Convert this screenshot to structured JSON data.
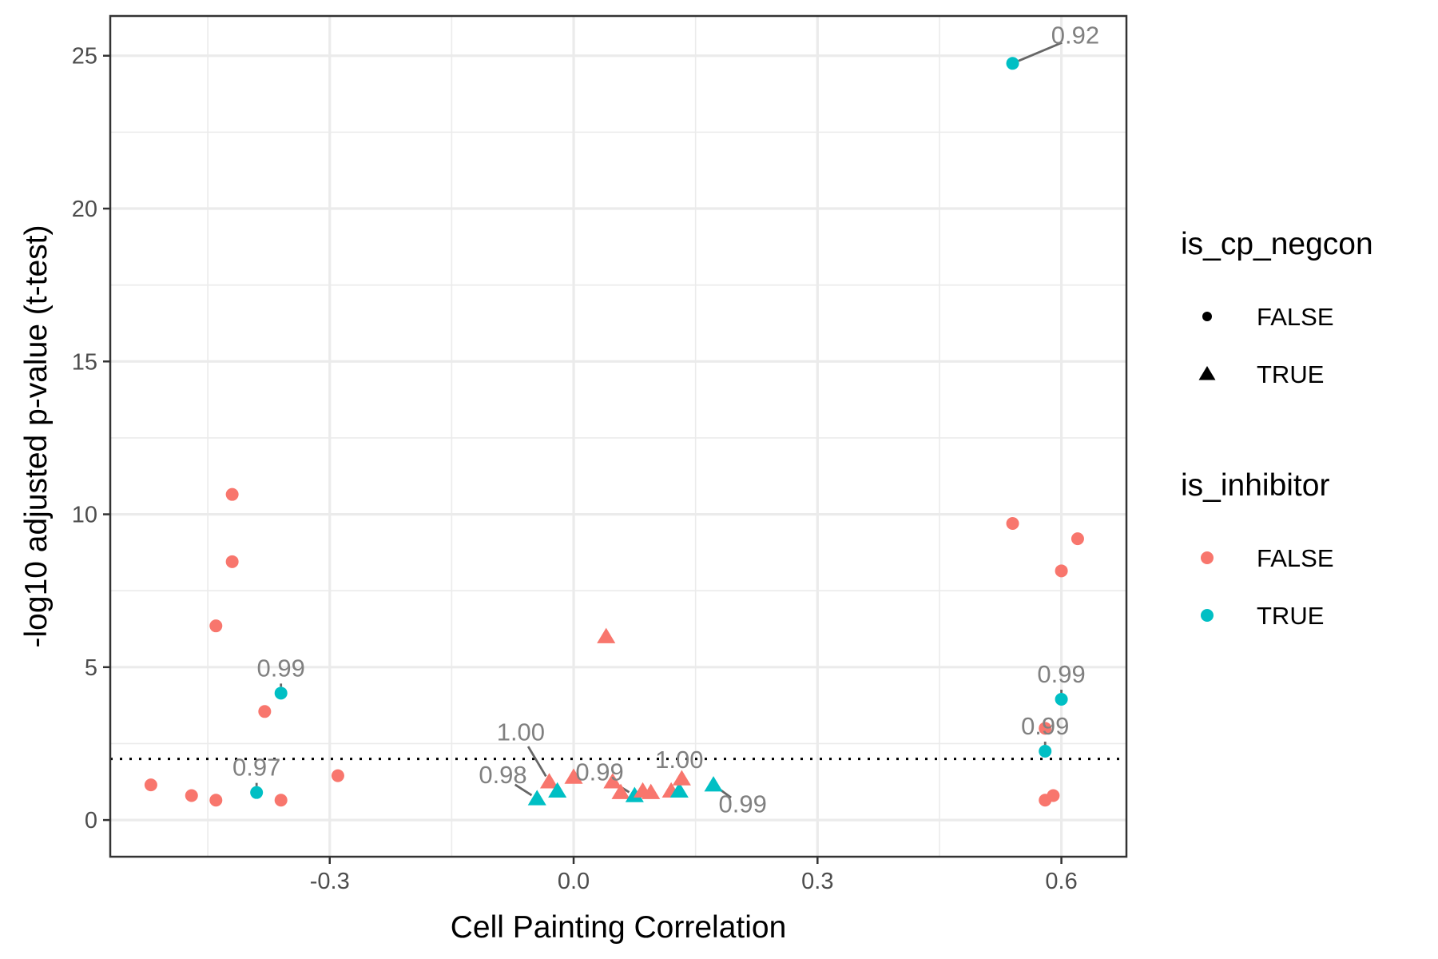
{
  "chart_data": {
    "type": "scatter",
    "xlabel": "Cell Painting Correlation",
    "ylabel": "-log10 adjusted p-value (t-test)",
    "xlim": [
      -0.57,
      0.68
    ],
    "ylim": [
      -1.2,
      26.3
    ],
    "xticks": [
      -0.3,
      0.0,
      0.3,
      0.6
    ],
    "xtick_labels": [
      "-0.3",
      "0.0",
      "0.3",
      "0.6"
    ],
    "yticks": [
      0,
      5,
      10,
      15,
      20,
      25
    ],
    "ytick_labels": [
      "0",
      "5",
      "10",
      "15",
      "20",
      "25"
    ],
    "grid": true,
    "threshold_line": 2.0,
    "legend_position": "right",
    "colors": {
      "FALSE": "#F8766D",
      "TRUE": "#00BFC4"
    },
    "legends": [
      {
        "title": "is_cp_negcon",
        "items": [
          {
            "label": "FALSE",
            "shape": "circle",
            "color": "#000000"
          },
          {
            "label": "TRUE",
            "shape": "triangle",
            "color": "#000000"
          }
        ]
      },
      {
        "title": "is_inhibitor",
        "items": [
          {
            "label": "FALSE",
            "shape": "circle",
            "color": "#F8766D"
          },
          {
            "label": "TRUE",
            "shape": "circle",
            "color": "#00BFC4"
          }
        ]
      }
    ],
    "points": [
      {
        "x": -0.52,
        "y": 1.15,
        "is_cp_negcon": false,
        "is_inhibitor": false
      },
      {
        "x": -0.47,
        "y": 0.8,
        "is_cp_negcon": false,
        "is_inhibitor": false
      },
      {
        "x": -0.44,
        "y": 0.65,
        "is_cp_negcon": false,
        "is_inhibitor": false
      },
      {
        "x": -0.44,
        "y": 6.35,
        "is_cp_negcon": false,
        "is_inhibitor": false
      },
      {
        "x": -0.42,
        "y": 10.65,
        "is_cp_negcon": false,
        "is_inhibitor": false
      },
      {
        "x": -0.42,
        "y": 8.45,
        "is_cp_negcon": false,
        "is_inhibitor": false
      },
      {
        "x": -0.39,
        "y": 0.9,
        "is_cp_negcon": false,
        "is_inhibitor": true
      },
      {
        "x": -0.38,
        "y": 3.55,
        "is_cp_negcon": false,
        "is_inhibitor": false
      },
      {
        "x": -0.36,
        "y": 4.15,
        "is_cp_negcon": false,
        "is_inhibitor": true
      },
      {
        "x": -0.36,
        "y": 0.65,
        "is_cp_negcon": false,
        "is_inhibitor": false
      },
      {
        "x": -0.29,
        "y": 1.45,
        "is_cp_negcon": false,
        "is_inhibitor": false
      },
      {
        "x": -0.045,
        "y": 0.7,
        "is_cp_negcon": true,
        "is_inhibitor": true
      },
      {
        "x": -0.03,
        "y": 1.25,
        "is_cp_negcon": true,
        "is_inhibitor": false
      },
      {
        "x": -0.02,
        "y": 0.95,
        "is_cp_negcon": true,
        "is_inhibitor": true
      },
      {
        "x": 0.0,
        "y": 1.4,
        "is_cp_negcon": true,
        "is_inhibitor": false
      },
      {
        "x": 0.04,
        "y": 6.0,
        "is_cp_negcon": true,
        "is_inhibitor": false
      },
      {
        "x": 0.048,
        "y": 1.25,
        "is_cp_negcon": true,
        "is_inhibitor": false
      },
      {
        "x": 0.058,
        "y": 0.9,
        "is_cp_negcon": true,
        "is_inhibitor": false
      },
      {
        "x": 0.075,
        "y": 0.8,
        "is_cp_negcon": true,
        "is_inhibitor": true
      },
      {
        "x": 0.085,
        "y": 0.95,
        "is_cp_negcon": true,
        "is_inhibitor": false
      },
      {
        "x": 0.095,
        "y": 0.9,
        "is_cp_negcon": true,
        "is_inhibitor": false
      },
      {
        "x": 0.12,
        "y": 0.95,
        "is_cp_negcon": true,
        "is_inhibitor": false
      },
      {
        "x": 0.13,
        "y": 0.95,
        "is_cp_negcon": true,
        "is_inhibitor": true
      },
      {
        "x": 0.133,
        "y": 1.35,
        "is_cp_negcon": true,
        "is_inhibitor": false
      },
      {
        "x": 0.172,
        "y": 1.15,
        "is_cp_negcon": true,
        "is_inhibitor": true
      },
      {
        "x": 0.54,
        "y": 24.75,
        "is_cp_negcon": false,
        "is_inhibitor": true
      },
      {
        "x": 0.54,
        "y": 9.7,
        "is_cp_negcon": false,
        "is_inhibitor": false
      },
      {
        "x": 0.58,
        "y": 3.0,
        "is_cp_negcon": false,
        "is_inhibitor": false
      },
      {
        "x": 0.58,
        "y": 2.25,
        "is_cp_negcon": false,
        "is_inhibitor": true
      },
      {
        "x": 0.58,
        "y": 0.65,
        "is_cp_negcon": false,
        "is_inhibitor": false
      },
      {
        "x": 0.59,
        "y": 0.8,
        "is_cp_negcon": false,
        "is_inhibitor": false
      },
      {
        "x": 0.6,
        "y": 8.15,
        "is_cp_negcon": false,
        "is_inhibitor": false
      },
      {
        "x": 0.6,
        "y": 3.95,
        "is_cp_negcon": false,
        "is_inhibitor": true
      },
      {
        "x": 0.62,
        "y": 9.2,
        "is_cp_negcon": false,
        "is_inhibitor": false
      }
    ],
    "annotations": [
      {
        "label": "0.92",
        "x": 0.54,
        "y": 24.75,
        "tx": 0.617,
        "ty": 25.4,
        "anchor": "middle"
      },
      {
        "label": "0.99",
        "x": -0.36,
        "y": 4.15,
        "tx": -0.36,
        "ty": 4.7,
        "anchor": "middle"
      },
      {
        "label": "0.97",
        "x": -0.39,
        "y": 0.9,
        "tx": -0.39,
        "ty": 1.45,
        "anchor": "middle"
      },
      {
        "label": "1.00",
        "x": -0.03,
        "y": 1.25,
        "tx": -0.065,
        "ty": 2.6,
        "anchor": "middle"
      },
      {
        "label": "0.98",
        "x": -0.045,
        "y": 0.7,
        "tx": -0.087,
        "ty": 1.2,
        "anchor": "middle"
      },
      {
        "label": "0.99",
        "x": 0.075,
        "y": 0.8,
        "tx": 0.032,
        "ty": 1.3,
        "anchor": "middle"
      },
      {
        "label": "1.00",
        "x": 0.13,
        "y": 0.95,
        "tx": 0.13,
        "ty": 1.7,
        "anchor": "middle"
      },
      {
        "label": "0.99",
        "x": 0.172,
        "y": 1.15,
        "tx": 0.208,
        "ty": 0.25,
        "anchor": "middle"
      },
      {
        "label": "0.99",
        "x": 0.6,
        "y": 3.95,
        "tx": 0.6,
        "ty": 4.5,
        "anchor": "middle"
      },
      {
        "label": "0.99",
        "x": 0.58,
        "y": 2.25,
        "tx": 0.58,
        "ty": 2.8,
        "anchor": "middle"
      }
    ]
  }
}
